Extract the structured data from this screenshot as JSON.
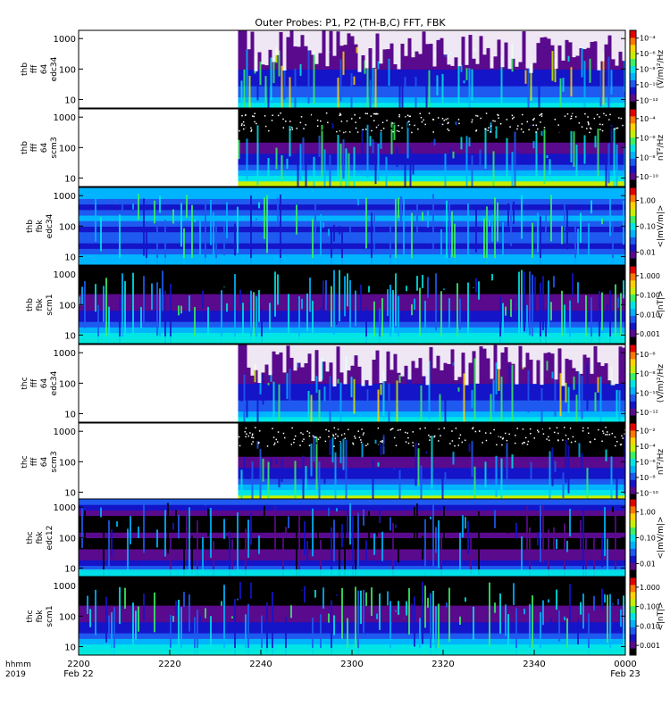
{
  "title": "Outer Probes: P1, P2 (TH-B,C) FFT, FBK",
  "chart_data": {
    "type": "heatmap",
    "title": "Outer Probes: P1, P2 (TH-B,C) FFT, FBK",
    "x_axis": {
      "label_lines": [
        "hhmm",
        "2019"
      ],
      "ticks": [
        {
          "label": "2200",
          "sublabel": "Feb 22"
        },
        {
          "label": "2220",
          "sublabel": ""
        },
        {
          "label": "2240",
          "sublabel": ""
        },
        {
          "label": "2300",
          "sublabel": ""
        },
        {
          "label": "2320",
          "sublabel": ""
        },
        {
          "label": "2340",
          "sublabel": ""
        },
        {
          "label": "0000",
          "sublabel": "Feb 23"
        }
      ],
      "data_start_tick": "2235"
    },
    "colors": {
      "scale": [
        "#000000",
        "#5a0a8c",
        "#1414c8",
        "#1e5af0",
        "#00b4ff",
        "#00e6e6",
        "#3cf064",
        "#c8f000",
        "#ffd200",
        "#ff7800",
        "#e60000"
      ]
    },
    "panels": [
      {
        "id": "thb-fff-e34",
        "ylabel": [
          "thb",
          "fff",
          "64",
          "edc34"
        ],
        "yticks": [
          "10",
          "100",
          "1000"
        ],
        "cbar_label": "(V/m)²/Hz",
        "cbar_ticks": [
          "10⁻¹²",
          "10⁻¹⁰",
          "10⁻⁸",
          "10⁻⁶",
          "10⁻⁴"
        ],
        "kind": "fft_e"
      },
      {
        "id": "thb-fff-s3",
        "ylabel": [
          "thb",
          "fff",
          "64",
          "scm3"
        ],
        "yticks": [
          "10",
          "100",
          "1000"
        ],
        "cbar_label": "nT²/Hz",
        "cbar_ticks": [
          "10⁻¹⁰",
          "10⁻⁸",
          "10⁻⁶",
          "10⁻⁴"
        ],
        "kind": "fft_b"
      },
      {
        "id": "thb-fbk-e34",
        "ylabel": [
          "thb",
          "fbk",
          "edc34"
        ],
        "yticks": [
          "10",
          "100",
          "1000"
        ],
        "cbar_label": "<|mV/m|>",
        "cbar_ticks": [
          "0.01",
          "0.10",
          "1.00"
        ],
        "kind": "fbk_e"
      },
      {
        "id": "thb-fbk-s1",
        "ylabel": [
          "thb",
          "fbk",
          "scm1"
        ],
        "yticks": [
          "10",
          "100",
          "1000"
        ],
        "cbar_label": "<|nT|>",
        "cbar_ticks": [
          "0.001",
          "0.010",
          "0.100",
          "1.000"
        ],
        "kind": "fbk_b"
      },
      {
        "id": "thc-fff-e34",
        "ylabel": [
          "thc",
          "fff",
          "64",
          "edc34"
        ],
        "yticks": [
          "10",
          "100",
          "1000"
        ],
        "cbar_label": "(V/m)²/Hz",
        "cbar_ticks": [
          "10⁻¹²",
          "10⁻¹⁰",
          "10⁻⁸",
          "10⁻⁶"
        ],
        "kind": "fft_e"
      },
      {
        "id": "thc-fff-s3",
        "ylabel": [
          "thc",
          "fff",
          "64",
          "scm3"
        ],
        "yticks": [
          "10",
          "100",
          "1000"
        ],
        "cbar_label": "nT²/Hz",
        "cbar_ticks": [
          "10⁻¹⁰",
          "10⁻⁸",
          "10⁻⁶",
          "10⁻⁴",
          "10⁻²"
        ],
        "kind": "fft_b"
      },
      {
        "id": "thc-fbk-e12",
        "ylabel": [
          "thc",
          "fbk",
          "edc12"
        ],
        "yticks": [
          "10",
          "100",
          "1000"
        ],
        "cbar_label": "<|mV/m|>",
        "cbar_ticks": [
          "0.01",
          "0.10",
          "1.00"
        ],
        "kind": "fbk_e12"
      },
      {
        "id": "thc-fbk-s1",
        "ylabel": [
          "thc",
          "fbk",
          "scm1"
        ],
        "yticks": [
          "10",
          "100",
          "1000"
        ],
        "cbar_label": "<|nT|>",
        "cbar_ticks": [
          "0.001",
          "0.010",
          "0.100",
          "1.000"
        ],
        "kind": "fbk_b"
      }
    ]
  }
}
